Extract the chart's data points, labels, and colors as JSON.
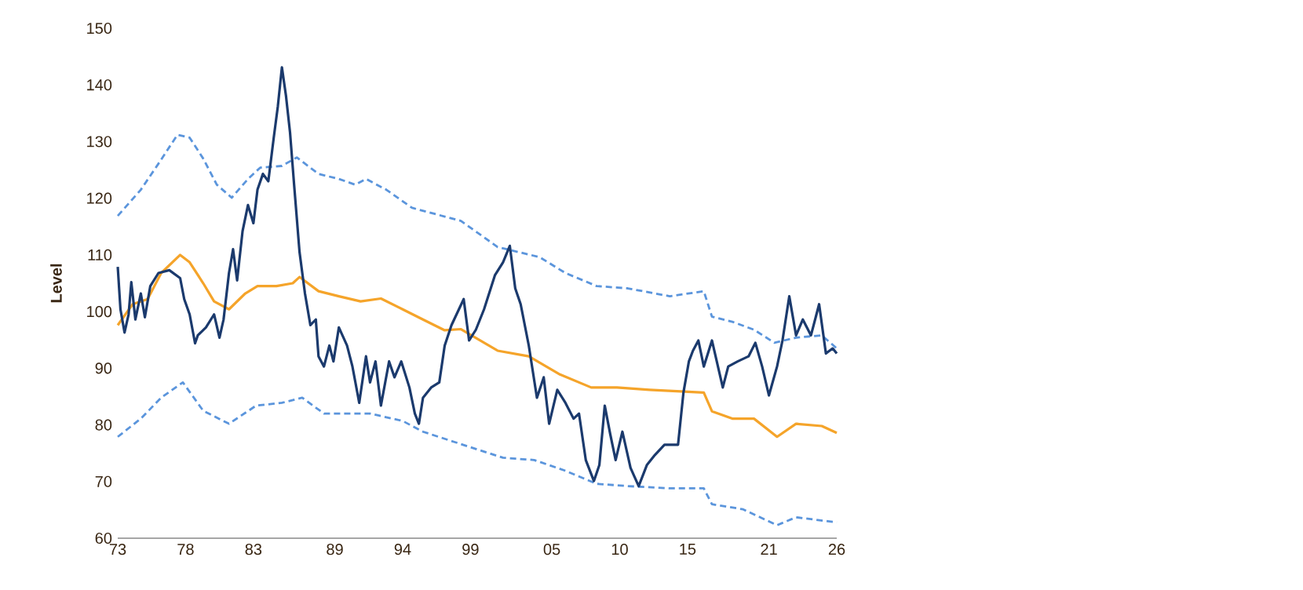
{
  "chart_data": {
    "type": "line",
    "ylabel": "Level",
    "xlim": [
      1973,
      2026
    ],
    "ylim": [
      60,
      150
    ],
    "xticks": [
      {
        "value": 1973,
        "label": "73"
      },
      {
        "value": 1978,
        "label": "78"
      },
      {
        "value": 1983,
        "label": "83"
      },
      {
        "value": 1989,
        "label": "89"
      },
      {
        "value": 1994,
        "label": "94"
      },
      {
        "value": 1999,
        "label": "99"
      },
      {
        "value": 2005,
        "label": "05"
      },
      {
        "value": 2010,
        "label": "10"
      },
      {
        "value": 2015,
        "label": "15"
      },
      {
        "value": 2021,
        "label": "21"
      },
      {
        "value": 2026,
        "label": "26"
      }
    ],
    "yticks": [
      60,
      70,
      80,
      90,
      100,
      110,
      120,
      130,
      140,
      150
    ],
    "grid": false,
    "marker": "none",
    "series": [
      {
        "color": "#5b95dc",
        "line_style": "dashed",
        "x": [
          1973.0,
          1974.7,
          1976.0,
          1977.4,
          1978.3,
          1979.3,
          1980.3,
          1981.4,
          1982.6,
          1983.5,
          1985.1,
          1986.2,
          1987.8,
          1989.3,
          1990.5,
          1991.3,
          1992.8,
          1994.7,
          1998.3,
          2001.0,
          2004.1,
          2006.0,
          2008.3,
          2010.6,
          2013.7,
          2016.2,
          2016.8,
          2018.3,
          2019.9,
          2021.4,
          2023.0,
          2024.9,
          2026.0
        ],
        "values": [
          116.9,
          121.5,
          126.1,
          131.2,
          130.7,
          127.0,
          122.4,
          120.1,
          123.4,
          125.4,
          125.7,
          127.2,
          124.3,
          123.4,
          122.4,
          123.4,
          121.5,
          118.3,
          116.0,
          111.4,
          109.6,
          106.8,
          104.5,
          104.1,
          102.7,
          103.6,
          99.1,
          98.2,
          96.8,
          94.5,
          95.4,
          95.8,
          93.5
        ]
      },
      {
        "color": "#5b95dc",
        "line_style": "dashed",
        "x": [
          1973.0,
          1974.7,
          1976.2,
          1977.8,
          1979.3,
          1981.2,
          1983.2,
          1985.1,
          1986.6,
          1988.2,
          1990.1,
          1991.6,
          1994.0,
          1995.5,
          1997.8,
          2001.4,
          2003.7,
          2006.0,
          2008.3,
          2010.6,
          2013.7,
          2016.2,
          2016.8,
          2019.1,
          2021.6,
          2023.0,
          2026.0
        ],
        "values": [
          77.9,
          81.1,
          84.8,
          87.5,
          82.5,
          80.2,
          83.4,
          83.9,
          84.8,
          82.0,
          82.0,
          82.0,
          80.7,
          78.8,
          77.0,
          74.2,
          73.8,
          71.9,
          69.6,
          69.2,
          68.8,
          68.8,
          66.0,
          65.1,
          62.3,
          63.7,
          62.8
        ]
      },
      {
        "color": "#f5a42a",
        "line_style": "solid",
        "x": [
          1973.0,
          1974.1,
          1975.2,
          1976.2,
          1977.6,
          1978.3,
          1979.3,
          1980.1,
          1981.2,
          1982.4,
          1983.3,
          1984.7,
          1985.9,
          1986.4,
          1987.8,
          1989.3,
          1990.9,
          1992.4,
          1994.0,
          1995.5,
          1997.1,
          1998.3,
          2001.0,
          2003.3,
          2005.6,
          2007.9,
          2009.8,
          2012.2,
          2014.5,
          2016.2,
          2016.8,
          2018.3,
          2019.9,
          2021.6,
          2023.0,
          2024.9,
          2026.0
        ],
        "values": [
          97.6,
          101.3,
          102.2,
          106.8,
          110.0,
          108.7,
          105.0,
          101.8,
          100.4,
          103.2,
          104.5,
          104.5,
          105.0,
          106.1,
          103.6,
          102.7,
          101.8,
          102.3,
          100.4,
          98.6,
          96.7,
          96.9,
          93.1,
          92.1,
          88.9,
          86.6,
          86.6,
          86.2,
          85.9,
          85.7,
          82.4,
          81.1,
          81.1,
          77.9,
          80.2,
          79.8,
          78.6
        ]
      },
      {
        "color": "#1b3a6d",
        "line_style": "solid",
        "x": [
          1973.0,
          1973.2,
          1973.5,
          1973.8,
          1974.0,
          1974.3,
          1974.7,
          1975.0,
          1975.4,
          1976.0,
          1976.8,
          1977.6,
          1977.9,
          1978.3,
          1978.7,
          1978.9,
          1979.5,
          1980.1,
          1980.5,
          1980.8,
          1981.2,
          1981.5,
          1981.8,
          1982.2,
          1982.6,
          1983.0,
          1983.3,
          1983.7,
          1984.1,
          1984.5,
          1984.8,
          1985.1,
          1985.4,
          1985.7,
          1986.0,
          1986.4,
          1986.8,
          1987.2,
          1987.6,
          1987.8,
          1988.2,
          1988.6,
          1988.9,
          1989.3,
          1989.9,
          1990.3,
          1990.8,
          1991.3,
          1991.6,
          1992.0,
          1992.4,
          1993.0,
          1993.4,
          1993.9,
          1994.5,
          1994.9,
          1995.2,
          1995.5,
          1996.1,
          1996.7,
          1997.1,
          1997.6,
          1998.5,
          1998.9,
          1999.4,
          2000.0,
          2000.8,
          2001.4,
          2001.9,
          2002.3,
          2002.7,
          2003.3,
          2003.9,
          2004.4,
          2004.8,
          2005.4,
          2006.0,
          2006.6,
          2007.0,
          2007.5,
          2008.1,
          2008.5,
          2008.9,
          2009.3,
          2009.7,
          2010.2,
          2010.8,
          2011.4,
          2012.0,
          2012.6,
          2013.3,
          2014.3,
          2014.7,
          2015.1,
          2015.4,
          2015.8,
          2016.2,
          2016.8,
          2017.6,
          2018.0,
          2018.7,
          2019.5,
          2020.0,
          2020.5,
          2021.0,
          2021.6,
          2022.0,
          2022.5,
          2023.0,
          2023.5,
          2024.1,
          2024.7,
          2025.2,
          2025.7,
          2026.0
        ],
        "values": [
          107.9,
          100.4,
          96.3,
          99.5,
          105.2,
          98.6,
          103.2,
          99.0,
          104.5,
          106.8,
          107.3,
          105.9,
          102.2,
          99.5,
          94.4,
          95.8,
          97.2,
          99.5,
          95.4,
          98.6,
          106.8,
          111.0,
          105.5,
          114.2,
          118.8,
          115.6,
          121.5,
          124.3,
          123.0,
          130.7,
          136.2,
          143.1,
          138.1,
          131.6,
          122.4,
          110.5,
          103.2,
          97.6,
          98.6,
          92.1,
          90.3,
          94.0,
          91.2,
          97.2,
          94.0,
          90.3,
          83.9,
          92.1,
          87.5,
          91.2,
          83.4,
          91.2,
          88.4,
          91.2,
          86.6,
          82.0,
          80.2,
          84.8,
          86.6,
          87.5,
          94.0,
          97.6,
          102.2,
          94.9,
          96.8,
          100.4,
          106.4,
          108.7,
          111.6,
          104.1,
          101.3,
          94.0,
          84.8,
          88.4,
          80.2,
          86.2,
          83.9,
          81.1,
          82.0,
          73.8,
          70.1,
          72.9,
          83.4,
          78.4,
          73.8,
          78.8,
          72.4,
          69.2,
          72.9,
          74.7,
          76.5,
          76.5,
          85.7,
          91.2,
          93.1,
          94.9,
          90.3,
          94.9,
          86.6,
          90.3,
          91.2,
          92.1,
          94.5,
          90.3,
          85.2,
          90.3,
          94.9,
          102.7,
          95.8,
          98.6,
          95.8,
          101.3,
          92.6,
          93.5,
          92.6
        ]
      }
    ]
  }
}
